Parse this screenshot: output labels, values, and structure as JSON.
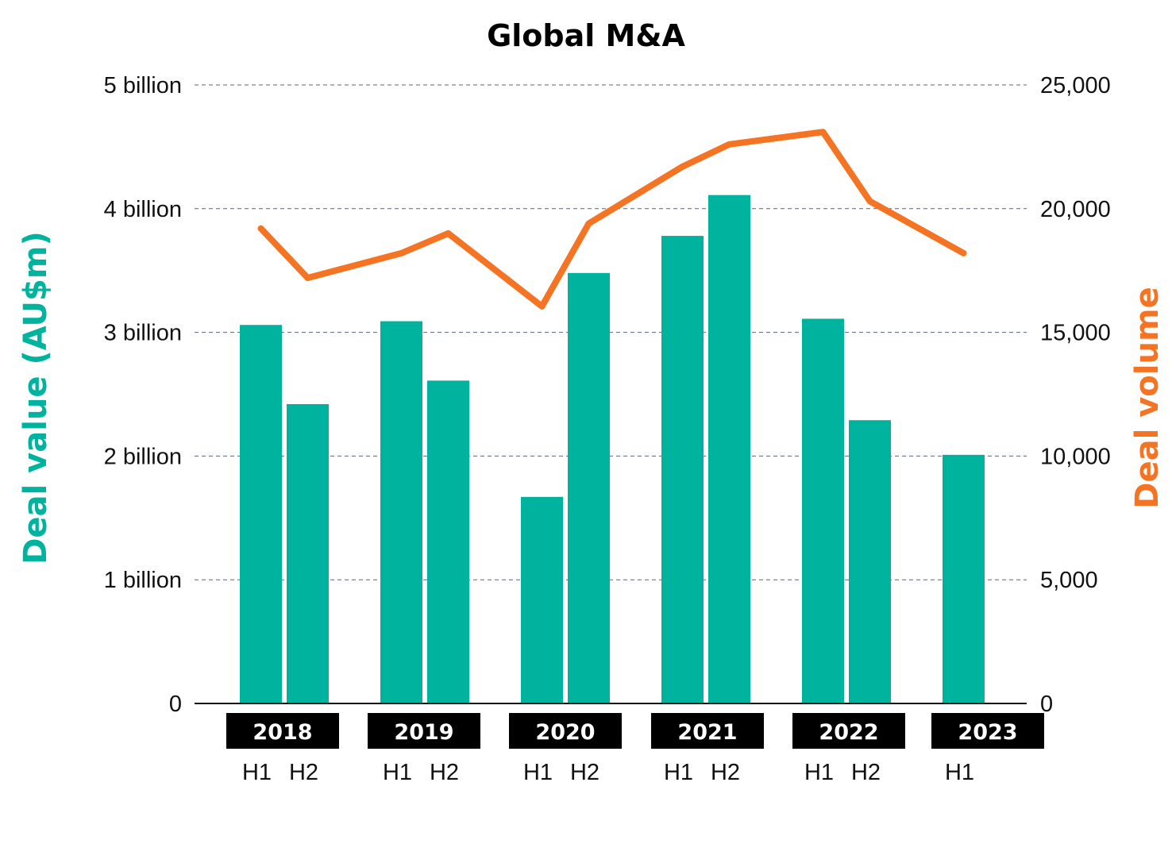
{
  "chart_data": {
    "type": "bar+line",
    "title": "Global M&A",
    "categories": [
      "2018 H1",
      "2018 H2",
      "2019 H1",
      "2019 H2",
      "2020 H1",
      "2020 H2",
      "2021 H1",
      "2021 H2",
      "2022 H1",
      "2022 H2",
      "2023 H1"
    ],
    "groups": [
      {
        "year": "2018",
        "halves": [
          "H1",
          "H2"
        ]
      },
      {
        "year": "2019",
        "halves": [
          "H1",
          "H2"
        ]
      },
      {
        "year": "2020",
        "halves": [
          "H1",
          "H2"
        ]
      },
      {
        "year": "2021",
        "halves": [
          "H1",
          "H2"
        ]
      },
      {
        "year": "2022",
        "halves": [
          "H1",
          "H2"
        ]
      },
      {
        "year": "2023",
        "halves": [
          "H1"
        ]
      }
    ],
    "series": [
      {
        "name": "Deal value (AU$m)",
        "type": "bar",
        "axis": "left",
        "color": "#00B39E",
        "values": [
          3.06,
          2.42,
          3.09,
          2.61,
          1.67,
          3.48,
          3.78,
          4.11,
          3.11,
          2.29,
          2.01
        ],
        "unit": "billion"
      },
      {
        "name": "Deal volume",
        "type": "line",
        "axis": "right",
        "color": "#F47424",
        "values": [
          19200,
          17200,
          18200,
          19000,
          16050,
          19400,
          21700,
          22600,
          23100,
          20300,
          18200
        ]
      }
    ],
    "y_left": {
      "label": "Deal value (AU$m)",
      "range": [
        0,
        5
      ],
      "ticks": [
        0,
        1,
        2,
        3,
        4,
        5
      ],
      "tick_labels": [
        "0",
        "1 billion",
        "2 billion",
        "3 billion",
        "4 billion",
        "5 billion"
      ],
      "color": "#00B39E"
    },
    "y_right": {
      "label": "Deal volume",
      "range": [
        0,
        25000
      ],
      "ticks": [
        0,
        5000,
        10000,
        15000,
        20000,
        25000
      ],
      "tick_labels": [
        "0",
        "5,000",
        "10,000",
        "15,000",
        "20,000",
        "25,000"
      ],
      "color": "#F47424"
    },
    "grid": true,
    "grid_style": "dashed"
  }
}
